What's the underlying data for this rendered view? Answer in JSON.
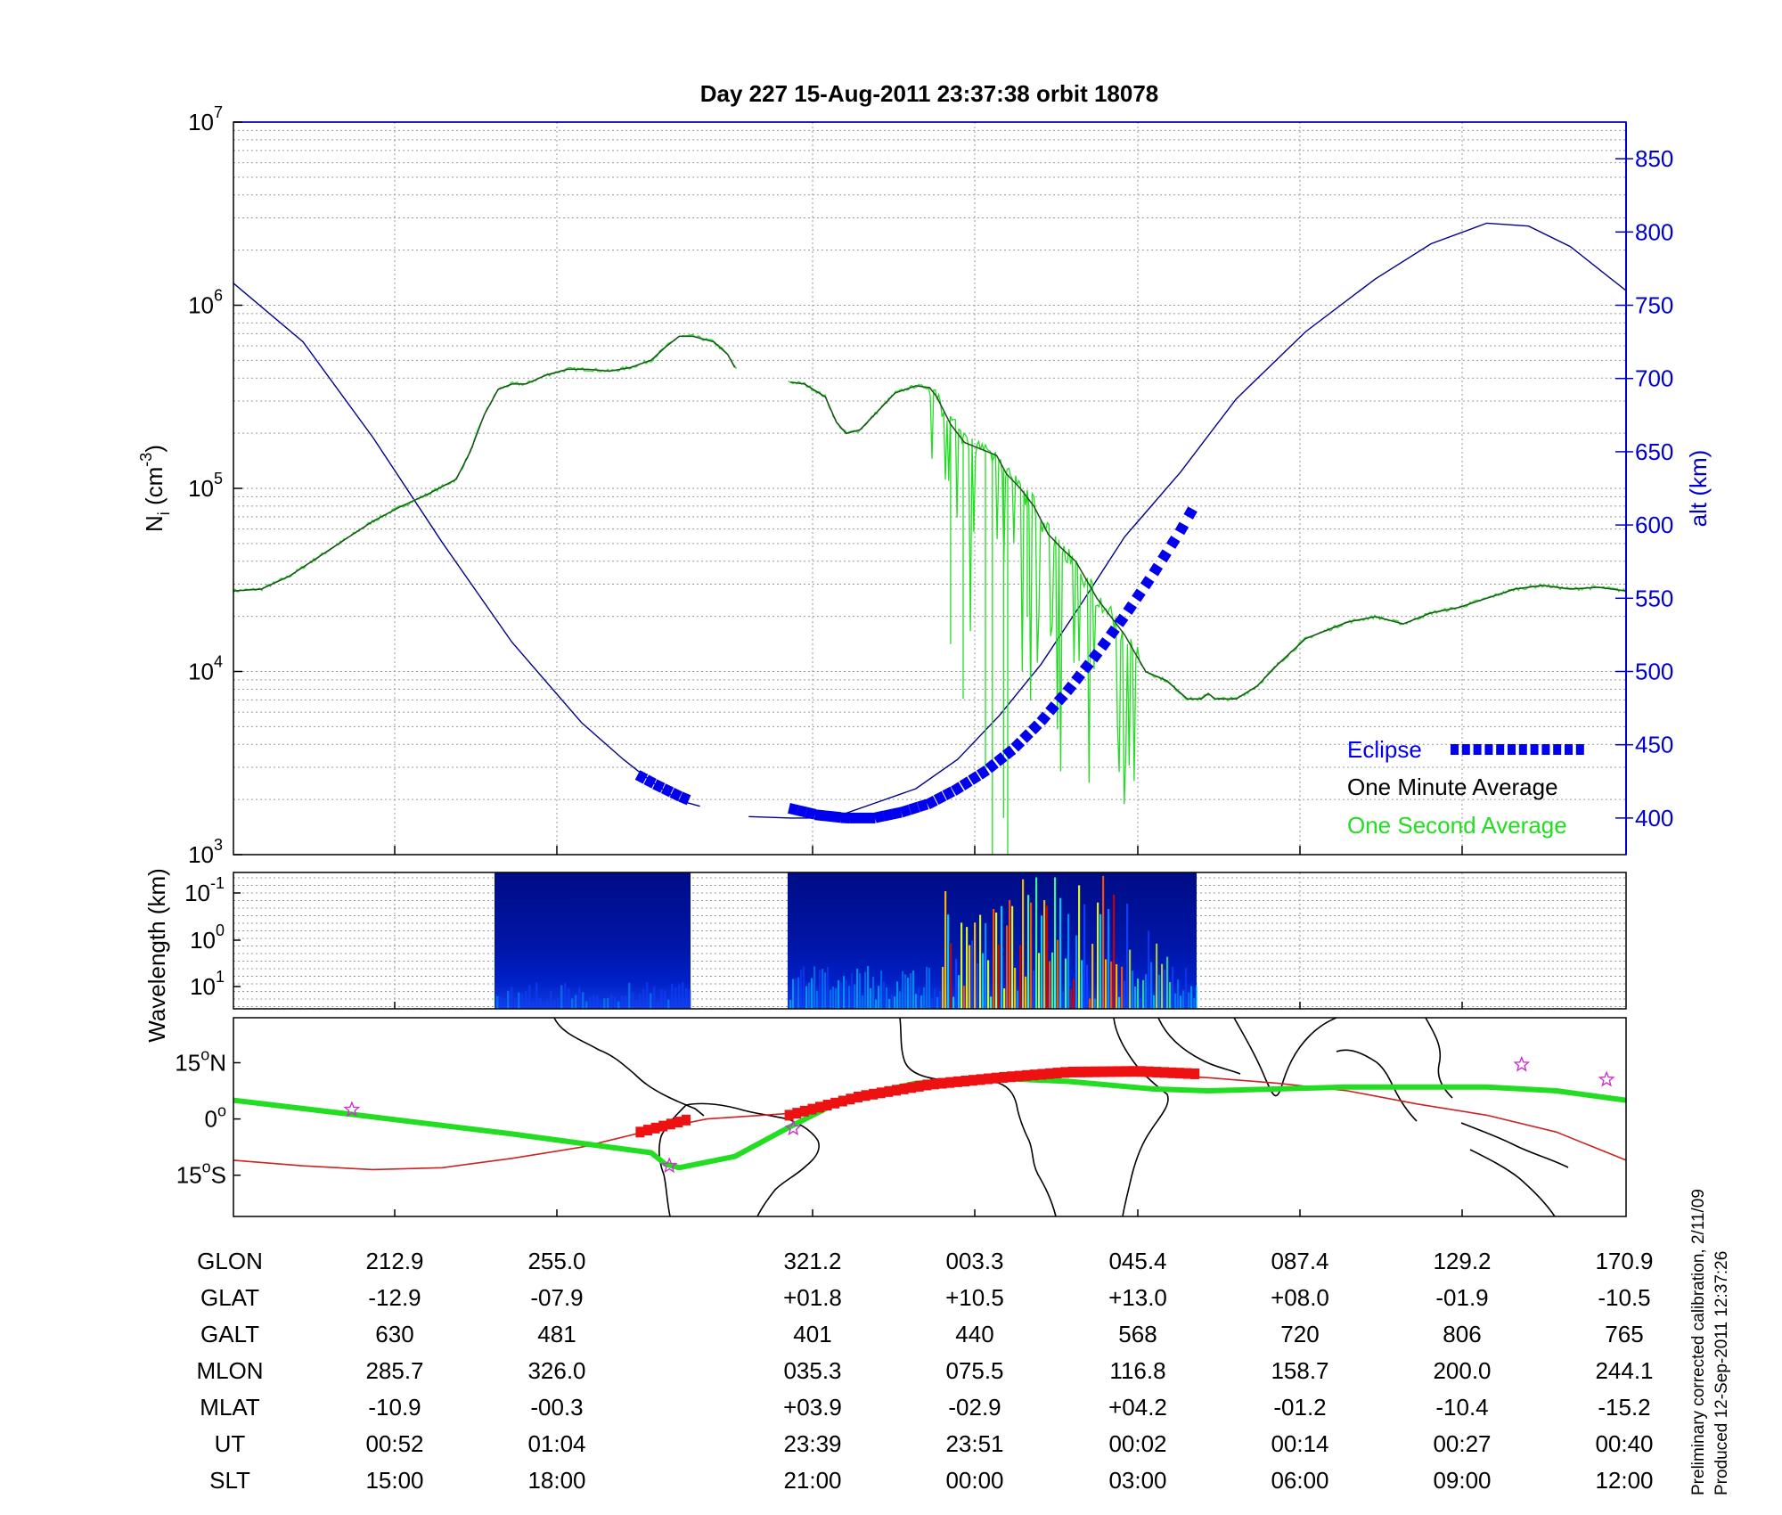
{
  "title": "Day 227  15-Aug-2011 23:37:38   orbit 18078",
  "colors": {
    "ni_one_minute": "#1e4f1e",
    "ni_one_second": "#22dd22",
    "altitude": "#00008b",
    "eclipse": "#0000ee",
    "axis_right": "#0000cc",
    "ground_track": "#22dd22",
    "magnetic_equator": "#cc2222",
    "eclipse_track": "#ee1111",
    "star": "#cc33cc",
    "grid": "#999999"
  },
  "panel_ni": {
    "ylabel_main": "N",
    "ylabel_sub": "i",
    "ylabel_unit": " (cm",
    "ylabel_exp": "-3",
    "ylabel_close": ")",
    "y_ticks": [
      {
        "base": "10",
        "exp": "3",
        "value": 1000
      },
      {
        "base": "10",
        "exp": "4",
        "value": 10000
      },
      {
        "base": "10",
        "exp": "5",
        "value": 100000
      },
      {
        "base": "10",
        "exp": "6",
        "value": 1000000
      },
      {
        "base": "10",
        "exp": "7",
        "value": 10000000
      }
    ],
    "ylim": [
      1000,
      10000000
    ],
    "alt_label": "alt (km)",
    "alt_ticks": [
      "400",
      "450",
      "500",
      "550",
      "600",
      "650",
      "700",
      "750",
      "800",
      "850"
    ],
    "alt_lim": [
      375,
      875
    ],
    "legend": {
      "eclipse": "Eclipse",
      "one_minute": "One Minute Average",
      "one_second": "One Second Average"
    }
  },
  "panel_spectrogram": {
    "ylabel": "Wavelength (km)",
    "y_ticks": [
      {
        "base": "10",
        "exp": "-1"
      },
      {
        "base": "10",
        "exp": "0"
      },
      {
        "base": "10",
        "exp": "1"
      }
    ]
  },
  "panel_map": {
    "lat_ticks": [
      {
        "value": 15,
        "num": "15",
        "deg": "o",
        "hem": "N"
      },
      {
        "value": 0,
        "num": "0",
        "deg": "o",
        "hem": ""
      },
      {
        "value": -15,
        "num": "15",
        "deg": "o",
        "hem": "S"
      }
    ],
    "lat_lim": [
      -26,
      27
    ],
    "stars": [
      [
        0.085,
        2.5
      ],
      [
        0.313,
        -12.5
      ],
      [
        0.402,
        -2.5
      ],
      [
        0.925,
        14.5
      ],
      [
        0.986,
        10.5
      ]
    ]
  },
  "table": {
    "row_labels": [
      "GLON",
      "GLAT",
      "GALT",
      "MLON",
      "MLAT",
      "UT",
      "SLT"
    ],
    "columns": [
      [
        "212.9",
        "-12.9",
        "630",
        "285.7",
        "-10.9",
        "00:52",
        "15:00"
      ],
      [
        "255.0",
        "-07.9",
        "481",
        "326.0",
        "-00.3",
        "01:04",
        "18:00"
      ],
      [
        "321.2",
        "+01.8",
        "401",
        "035.3",
        "+03.9",
        "23:39",
        "21:00"
      ],
      [
        "003.3",
        "+10.5",
        "440",
        "075.5",
        "-02.9",
        "23:51",
        "00:00"
      ],
      [
        "045.4",
        "+13.0",
        "568",
        "116.8",
        "+04.2",
        "00:02",
        "03:00"
      ],
      [
        "087.4",
        "+08.0",
        "720",
        "158.7",
        "-01.2",
        "00:14",
        "06:00"
      ],
      [
        "129.2",
        "-01.9",
        "806",
        "200.0",
        "-10.4",
        "00:27",
        "09:00"
      ],
      [
        "170.9",
        "-10.5",
        "765",
        "244.1",
        "-15.2",
        "00:40",
        "12:00"
      ]
    ]
  },
  "footer": {
    "line1": "Preliminary corrected calibration, 2/11/09",
    "line2": "Produced 12-Sep-2011 12:37:26"
  },
  "chart_data": {
    "type": "line",
    "x_fraction_note": "x in fraction of orbit window (0 = left edge, 1 = right edge)",
    "series": [
      {
        "name": "One Minute Average",
        "log10_ni": [
          [
            0.0,
            4.44
          ],
          [
            0.02,
            4.45
          ],
          [
            0.04,
            4.52
          ],
          [
            0.06,
            4.62
          ],
          [
            0.08,
            4.72
          ],
          [
            0.1,
            4.82
          ],
          [
            0.12,
            4.9
          ],
          [
            0.14,
            4.97
          ],
          [
            0.16,
            5.05
          ],
          [
            0.17,
            5.2
          ],
          [
            0.18,
            5.4
          ],
          [
            0.19,
            5.54
          ],
          [
            0.2,
            5.57
          ],
          [
            0.21,
            5.57
          ],
          [
            0.225,
            5.62
          ],
          [
            0.24,
            5.65
          ],
          [
            0.255,
            5.65
          ],
          [
            0.27,
            5.64
          ],
          [
            0.285,
            5.66
          ],
          [
            0.3,
            5.7
          ],
          [
            0.31,
            5.77
          ],
          [
            0.32,
            5.83
          ],
          [
            0.33,
            5.83
          ],
          [
            0.345,
            5.8
          ],
          [
            0.355,
            5.73
          ],
          [
            0.36,
            5.66
          ],
          null,
          [
            0.4,
            5.58
          ],
          [
            0.41,
            5.57
          ],
          [
            0.425,
            5.5
          ],
          [
            0.433,
            5.36
          ],
          [
            0.44,
            5.3
          ],
          [
            0.45,
            5.32
          ],
          [
            0.46,
            5.4
          ],
          [
            0.475,
            5.52
          ],
          [
            0.49,
            5.56
          ],
          [
            0.5,
            5.55
          ],
          [
            0.505,
            5.5
          ],
          [
            0.515,
            5.35
          ],
          [
            0.525,
            5.25
          ],
          [
            0.535,
            5.22
          ],
          [
            0.548,
            5.18
          ],
          [
            0.555,
            5.08
          ],
          [
            0.565,
            5.0
          ],
          [
            0.575,
            4.9
          ],
          [
            0.585,
            4.75
          ],
          [
            0.595,
            4.67
          ],
          [
            0.605,
            4.6
          ],
          [
            0.62,
            4.4
          ],
          [
            0.64,
            4.2
          ],
          [
            0.655,
            4.0
          ],
          [
            0.67,
            3.95
          ],
          [
            0.685,
            3.85
          ],
          [
            0.695,
            3.85
          ],
          [
            0.7,
            3.88
          ],
          [
            0.705,
            3.85
          ],
          [
            0.72,
            3.85
          ],
          [
            0.735,
            3.92
          ],
          [
            0.75,
            4.04
          ],
          [
            0.77,
            4.18
          ],
          [
            0.8,
            4.27
          ],
          [
            0.82,
            4.3
          ],
          [
            0.84,
            4.26
          ],
          [
            0.86,
            4.32
          ],
          [
            0.88,
            4.35
          ],
          [
            0.9,
            4.4
          ],
          [
            0.92,
            4.45
          ],
          [
            0.94,
            4.47
          ],
          [
            0.96,
            4.45
          ],
          [
            0.98,
            4.46
          ],
          [
            1.0,
            4.44
          ]
        ]
      },
      {
        "name": "Altitude",
        "alt_km": [
          [
            0.0,
            765
          ],
          [
            0.05,
            725
          ],
          [
            0.1,
            660
          ],
          [
            0.15,
            588
          ],
          [
            0.2,
            520
          ],
          [
            0.25,
            465
          ],
          [
            0.28,
            440
          ],
          [
            0.3,
            425
          ],
          [
            0.32,
            412
          ],
          [
            0.335,
            408
          ],
          null,
          [
            0.37,
            401
          ],
          [
            0.4,
            400
          ],
          [
            0.43,
            400
          ],
          [
            0.46,
            410
          ],
          [
            0.49,
            420
          ],
          [
            0.52,
            440
          ],
          [
            0.55,
            470
          ],
          [
            0.58,
            505
          ],
          [
            0.61,
            548
          ],
          [
            0.64,
            592
          ],
          [
            0.68,
            636
          ],
          [
            0.72,
            686
          ],
          [
            0.77,
            732
          ],
          [
            0.82,
            768
          ],
          [
            0.86,
            792
          ],
          [
            0.9,
            806
          ],
          [
            0.93,
            804
          ],
          [
            0.96,
            790
          ],
          [
            0.98,
            775
          ],
          [
            1.0,
            760
          ]
        ]
      },
      {
        "name": "Eclipse",
        "alt_km": [
          [
            0.293,
            428
          ],
          [
            0.305,
            422
          ],
          [
            0.32,
            415
          ],
          [
            0.33,
            411
          ],
          null,
          [
            0.402,
            406
          ],
          [
            0.42,
            402
          ],
          [
            0.44,
            400
          ],
          [
            0.46,
            400
          ],
          [
            0.48,
            404
          ],
          [
            0.5,
            410
          ],
          [
            0.52,
            420
          ],
          [
            0.54,
            432
          ],
          [
            0.56,
            447
          ],
          [
            0.58,
            466
          ],
          [
            0.6,
            488
          ],
          [
            0.62,
            512
          ],
          [
            0.64,
            538
          ],
          [
            0.66,
            566
          ],
          [
            0.68,
            596
          ],
          [
            0.693,
            618
          ]
        ]
      }
    ],
    "map_tracks": {
      "ground_track_lat": [
        [
          0.0,
          5
        ],
        [
          0.09,
          1
        ],
        [
          0.2,
          -4
        ],
        [
          0.3,
          -9
        ],
        [
          0.31,
          -12
        ],
        [
          0.32,
          -13
        ],
        [
          0.36,
          -10
        ],
        [
          0.4,
          -2
        ],
        [
          0.44,
          5.5
        ],
        [
          0.49,
          9.5
        ],
        [
          0.54,
          11
        ],
        [
          0.6,
          10
        ],
        [
          0.66,
          8
        ],
        [
          0.7,
          7.5
        ],
        [
          0.75,
          8
        ],
        [
          0.8,
          8.5
        ],
        [
          0.85,
          8.5
        ],
        [
          0.9,
          8.5
        ],
        [
          0.95,
          7.5
        ],
        [
          1.0,
          5
        ]
      ],
      "magnetic_equator_lat": [
        [
          0.0,
          -11
        ],
        [
          0.05,
          -12.5
        ],
        [
          0.1,
          -13.5
        ],
        [
          0.15,
          -13
        ],
        [
          0.2,
          -10.5
        ],
        [
          0.25,
          -7.5
        ],
        [
          0.3,
          -3
        ],
        [
          0.34,
          0
        ],
        [
          0.4,
          1.5
        ],
        [
          0.45,
          5
        ],
        [
          0.5,
          9
        ],
        [
          0.55,
          11
        ],
        [
          0.6,
          12.5
        ],
        [
          0.65,
          12
        ],
        [
          0.7,
          11
        ],
        [
          0.75,
          9.5
        ],
        [
          0.8,
          7.5
        ],
        [
          0.85,
          4
        ],
        [
          0.9,
          1
        ],
        [
          0.95,
          -3.5
        ],
        [
          1.0,
          -11
        ]
      ],
      "eclipse_track_lat": [
        [
          0.292,
          -3.5
        ],
        [
          0.328,
          0
        ],
        null,
        [
          0.399,
          1
        ],
        [
          0.45,
          6
        ],
        [
          0.5,
          9.2
        ],
        [
          0.55,
          11
        ],
        [
          0.6,
          12.5
        ],
        [
          0.65,
          12.7
        ],
        [
          0.693,
          12
        ]
      ]
    }
  }
}
